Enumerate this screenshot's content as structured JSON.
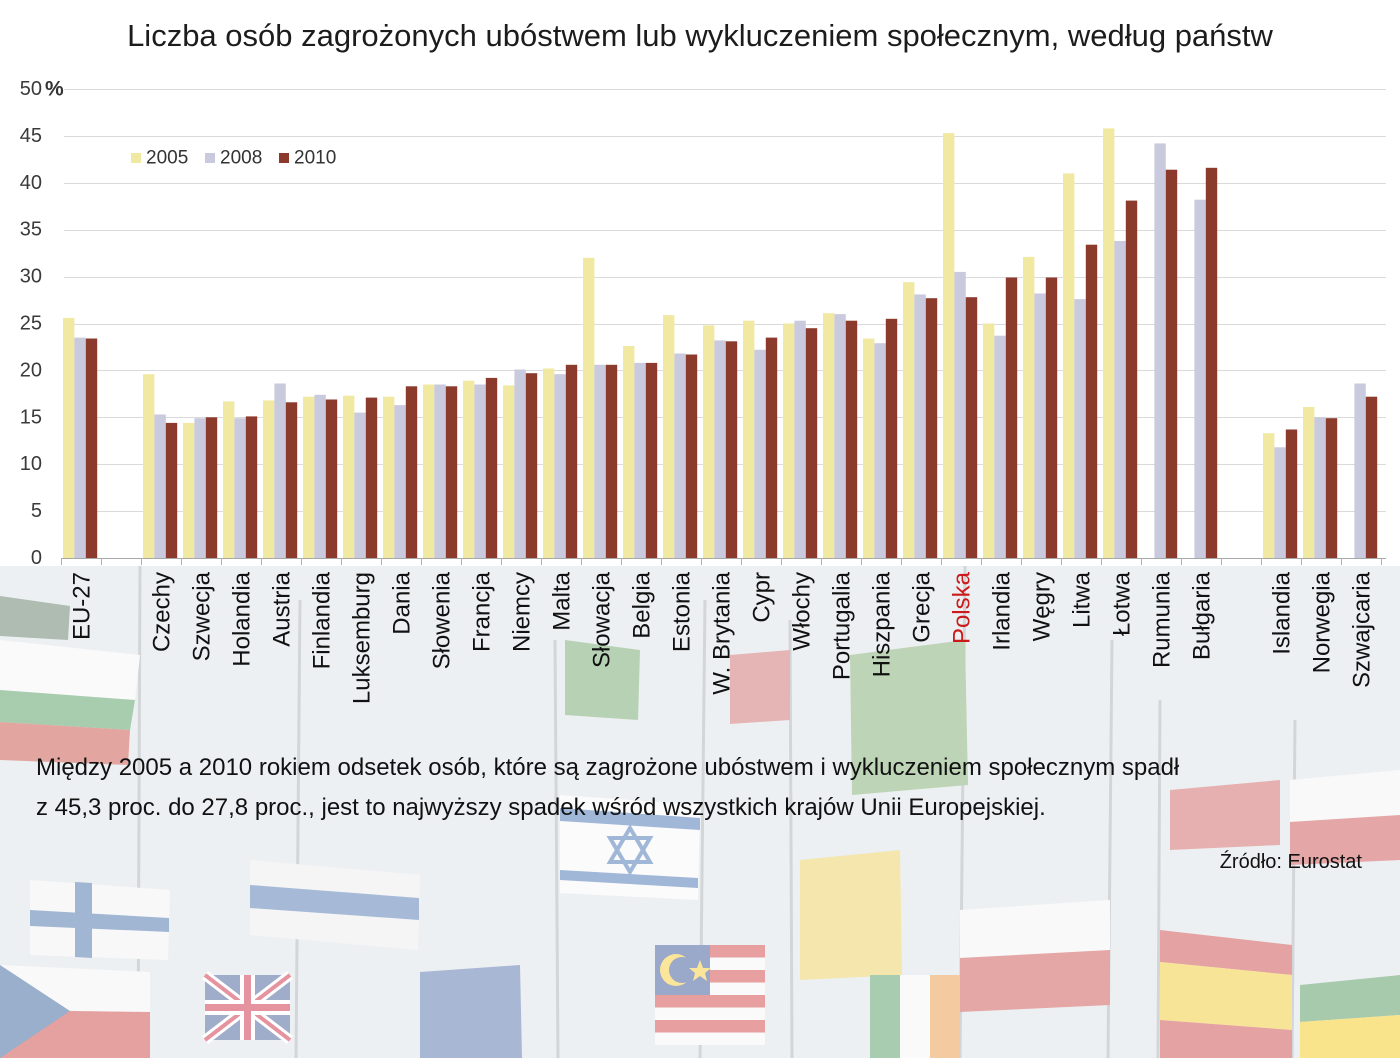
{
  "chart_data": {
    "type": "bar",
    "title": "Liczba osób zagrożonych ubóstwem lub wykluczeniem społecznym, według państw",
    "ylabel": "%",
    "ylim": [
      0,
      50
    ],
    "yticks": [
      0,
      5,
      10,
      15,
      20,
      25,
      30,
      35,
      40,
      45,
      50
    ],
    "grid": true,
    "legend_position": "top-left",
    "categories": [
      "EU-27",
      "Czechy",
      "Szwecja",
      "Holandia",
      "Austria",
      "Finlandia",
      "Luksemburg",
      "Dania",
      "Słowenia",
      "Francja",
      "Niemcy",
      "Malta",
      "Słowacja",
      "Belgia",
      "Estonia",
      "W. Brytania",
      "Cypr",
      "Włochy",
      "Portugalia",
      "Hiszpania",
      "Grecja",
      "Polska",
      "Irlandia",
      "Węgry",
      "Litwa",
      "Łotwa",
      "Rumunia",
      "Bułgaria",
      "Islandia",
      "Norwegia",
      "Szwajcaria"
    ],
    "series": [
      {
        "name": "2005",
        "color": "#f1e8a2",
        "values": [
          25.6,
          19.6,
          14.4,
          16.7,
          16.8,
          17.2,
          17.3,
          17.2,
          18.5,
          18.9,
          18.4,
          20.2,
          32.0,
          22.6,
          25.9,
          24.8,
          25.3,
          25.0,
          26.1,
          23.4,
          29.4,
          45.3,
          25.0,
          32.1,
          41.0,
          45.8,
          null,
          null,
          13.3,
          16.1,
          null
        ]
      },
      {
        "name": "2008",
        "color": "#c9cade",
        "values": [
          23.5,
          15.3,
          14.9,
          14.9,
          18.6,
          17.4,
          15.5,
          16.3,
          18.5,
          18.5,
          20.1,
          19.6,
          20.6,
          20.8,
          21.8,
          23.2,
          22.2,
          25.3,
          26.0,
          22.9,
          28.1,
          30.5,
          23.7,
          28.2,
          27.6,
          33.8,
          44.2,
          38.2,
          11.8,
          15.0,
          18.6
        ]
      },
      {
        "name": "2010",
        "color": "#8b3a2c",
        "values": [
          23.4,
          14.4,
          15.0,
          15.1,
          16.6,
          16.9,
          17.1,
          18.3,
          18.3,
          19.2,
          19.7,
          20.6,
          20.6,
          20.8,
          21.7,
          23.1,
          23.5,
          24.5,
          25.3,
          25.5,
          27.7,
          27.8,
          29.9,
          29.9,
          33.4,
          38.1,
          41.4,
          41.6,
          13.7,
          14.9,
          17.2
        ]
      }
    ],
    "highlighted_category": "Polska",
    "highlight_color": "#cc1a1a"
  },
  "note_lines": [
    "Między 2005 a 2010 rokiem odsetek osób, które są zagrożone ubóstwem i wykluczeniem społecznym spadł",
    "z 45,3 proc. do 27,8 proc., jest to najwyższy spadek wśród wszystkich krajów Unii Europejskiej."
  ],
  "source": "Źródło: Eurostat"
}
